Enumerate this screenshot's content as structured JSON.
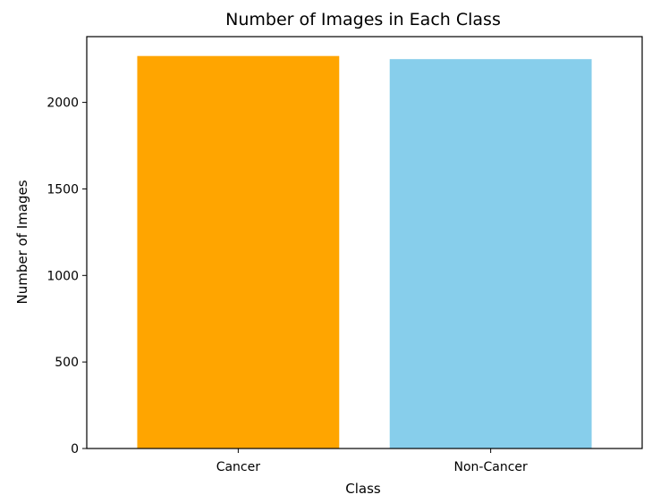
{
  "chart_data": {
    "type": "bar",
    "title": "Number of Images in Each Class",
    "xlabel": "Class",
    "ylabel": "Number of Images",
    "categories": [
      "Cancer",
      "Non-Cancer"
    ],
    "values": [
      2268,
      2250
    ],
    "colors": [
      "#ffa500",
      "#87ceeb"
    ],
    "ylim": [
      0,
      2380
    ],
    "yticks": [
      0,
      500,
      1000,
      1500,
      2000
    ],
    "grid": false
  }
}
